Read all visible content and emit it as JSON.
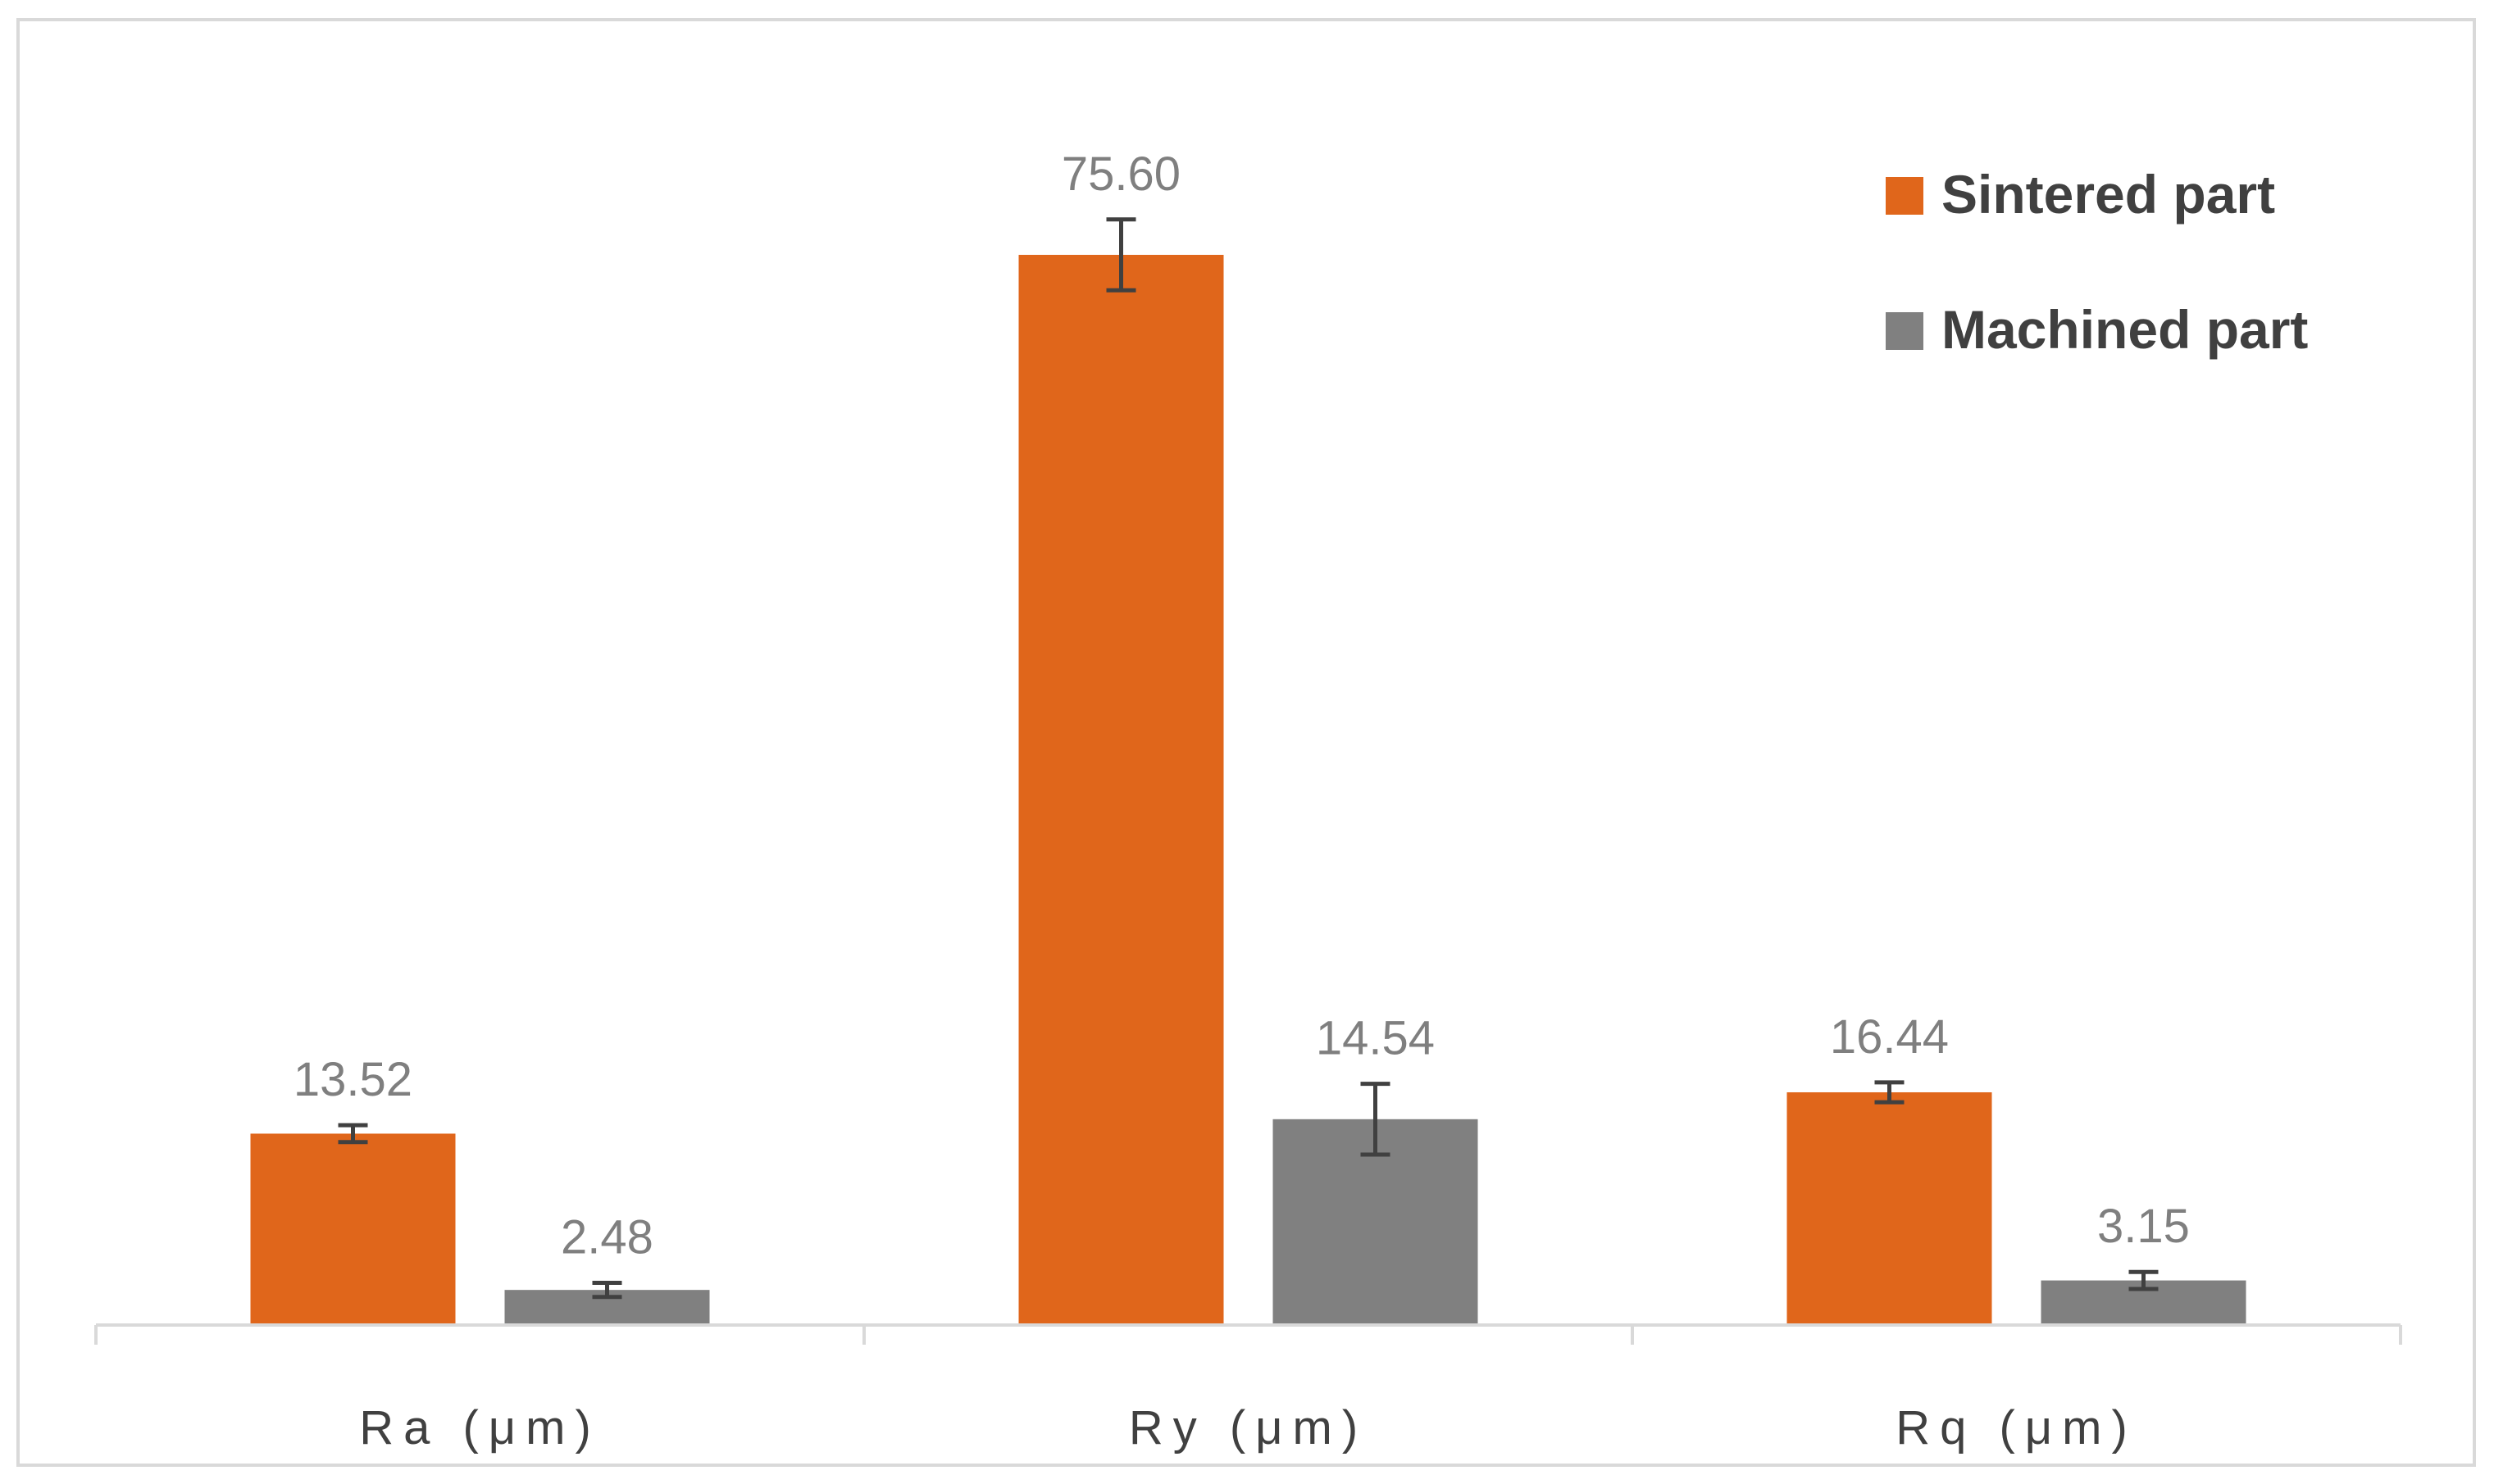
{
  "chart_data": {
    "type": "bar",
    "categories": [
      "Ra (μm)",
      "Ry (μm)",
      "Rq (μm)"
    ],
    "series": [
      {
        "name": "Sintered part",
        "color": "#E0661B",
        "values": [
          13.52,
          75.6,
          16.44
        ],
        "errors": [
          0.6,
          2.5,
          0.7
        ],
        "labels": [
          "13.52",
          "75.60",
          "16.44"
        ]
      },
      {
        "name": "Machined part",
        "color": "#808080",
        "values": [
          2.48,
          14.54,
          3.15
        ],
        "errors": [
          0.5,
          2.5,
          0.6
        ],
        "labels": [
          "2.48",
          "14.54",
          "3.15"
        ]
      }
    ],
    "ylim": [
      0,
      80
    ],
    "grid": false,
    "legend_position": "top-right",
    "xlabel": "",
    "ylabel": "",
    "title": ""
  }
}
